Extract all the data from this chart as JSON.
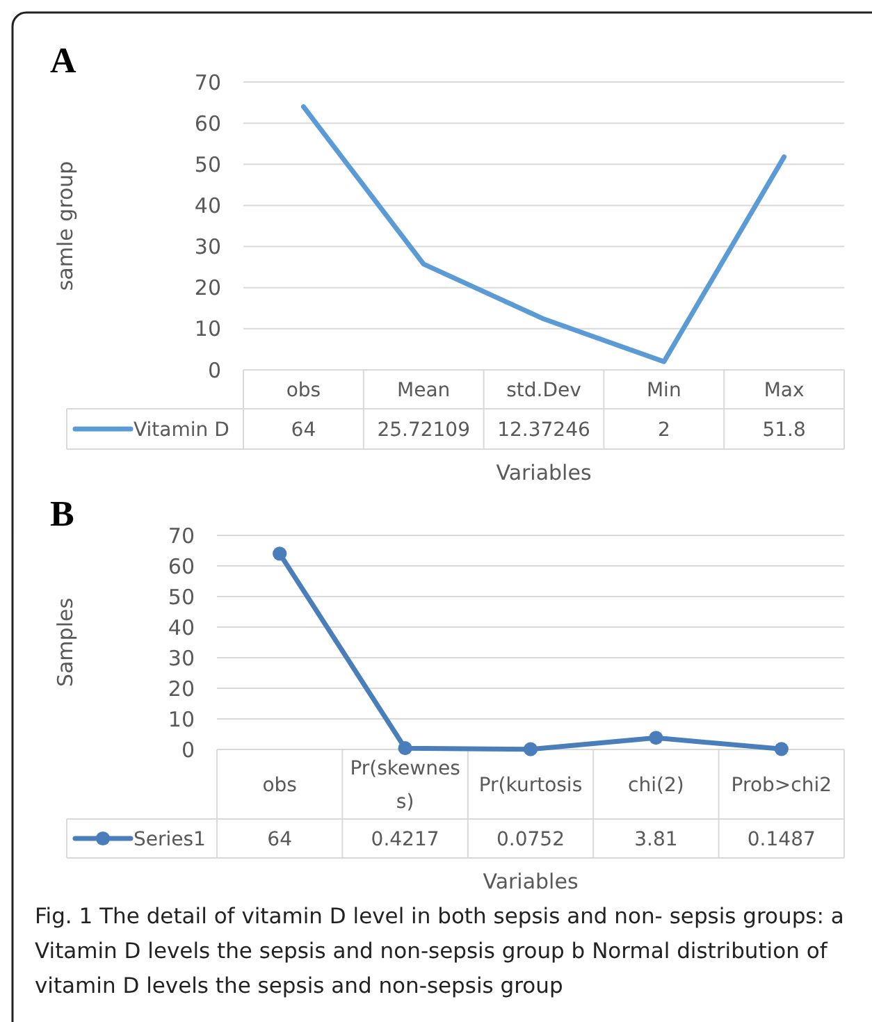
{
  "chart_data": [
    {
      "type": "line",
      "title": "A",
      "ylabel": "samle group",
      "xlabel": "Variables",
      "categories": [
        "obs",
        "Mean",
        "std.Dev",
        "Min",
        "Max"
      ],
      "series": [
        {
          "name": "Vitamin D",
          "color": "#5b9bd5",
          "values": [
            64,
            25.72109,
            12.37246,
            2,
            51.8
          ]
        }
      ],
      "ylim": [
        0,
        70
      ],
      "yticks": [
        0,
        10,
        20,
        30,
        40,
        50,
        60,
        70
      ],
      "grid": "y",
      "legend": "bottom",
      "data_labels": true,
      "marker": "none",
      "line_style": "solid"
    },
    {
      "type": "line",
      "title": "B",
      "ylabel": "Samples",
      "xlabel": "Variables",
      "categories": [
        "obs",
        "Pr(skewness)",
        "Pr(kurtosis",
        "chi(2)",
        "Prob>chi2"
      ],
      "series": [
        {
          "name": "Series1",
          "color": "#4a7ebb",
          "values": [
            64,
            0.4217,
            0.0752,
            3.81,
            0.1487
          ]
        }
      ],
      "ylim": [
        0,
        70
      ],
      "yticks": [
        0,
        10,
        20,
        30,
        40,
        50,
        60,
        70
      ],
      "grid": "y",
      "legend": "bottom",
      "data_labels": true,
      "marker": "circle",
      "line_style": "solid",
      "annotations": [
        "Fig. 1 The detail of vitamin D level in both sepsis and non- sepsis groups: a Vitamin D levels the sepsis and non-sepsis group b Normal distribution of vitamin D levels the sepsis and non-sepsis group"
      ]
    }
  ]
}
